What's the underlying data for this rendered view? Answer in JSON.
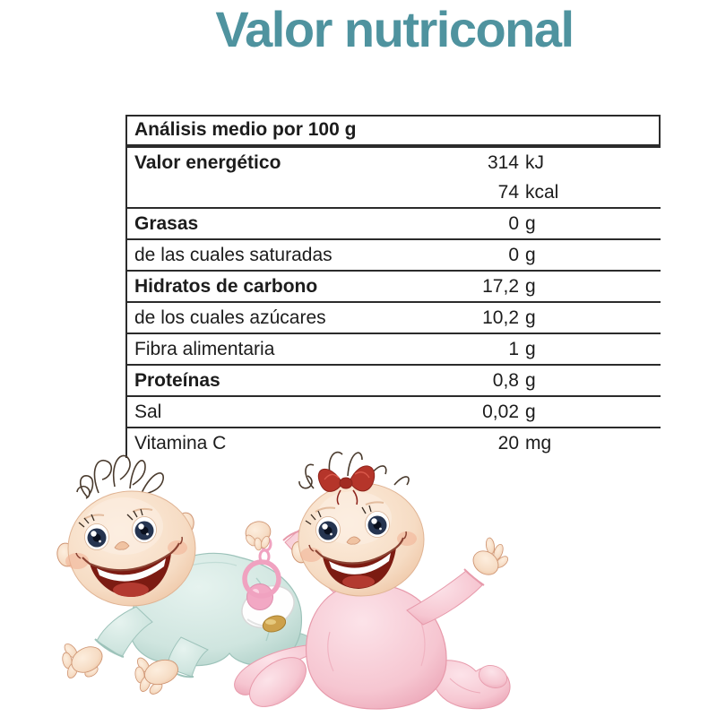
{
  "page_title": "Valor nutriconal",
  "colors": {
    "title_teal": "#4f939f",
    "table_border": "#2b2b2b",
    "text": "#1c1c1c",
    "boy_suit_mint": "#cfe5df",
    "girl_suit_pink": "#f6c6d1",
    "skin": "#f4d9c2",
    "bow_red": "#b5352a",
    "pacifier_pink": "#f0a2c0",
    "pacifier_gold": "#cda14b"
  },
  "table": {
    "header": "Análisis medio por 100 g",
    "rows": [
      {
        "label": "Valor energético",
        "bold": true,
        "values": [
          {
            "num": "314",
            "unit": "kJ"
          },
          {
            "num": "74",
            "unit": "kcal"
          }
        ]
      },
      {
        "label": "Grasas",
        "bold": true,
        "values": [
          {
            "num": "0",
            "unit": "g"
          }
        ]
      },
      {
        "label": "de las cuales saturadas",
        "bold": false,
        "values": [
          {
            "num": "0",
            "unit": "g"
          }
        ]
      },
      {
        "label": "Hidratos de carbono",
        "bold": true,
        "values": [
          {
            "num": "17,2",
            "unit": "g"
          }
        ]
      },
      {
        "label": "de los cuales azúcares",
        "bold": false,
        "values": [
          {
            "num": "10,2",
            "unit": "g"
          }
        ]
      },
      {
        "label": "Fibra alimentaria",
        "bold": false,
        "values": [
          {
            "num": "1",
            "unit": "g"
          }
        ]
      },
      {
        "label": "Proteínas",
        "bold": true,
        "values": [
          {
            "num": "0,8",
            "unit": "g"
          }
        ]
      },
      {
        "label": "Sal",
        "bold": false,
        "values": [
          {
            "num": "0,02",
            "unit": "g"
          }
        ]
      },
      {
        "label": "Vitamina C",
        "bold": false,
        "values": [
          {
            "num": "20",
            "unit": "mg"
          }
        ]
      }
    ]
  },
  "illustration": {
    "alt": "Dos bebés de dibujos animados: un bebé gateando con pijama azul claro y una bebé sentada con pijama rosa, lazo rojo y un chupete rosa"
  }
}
